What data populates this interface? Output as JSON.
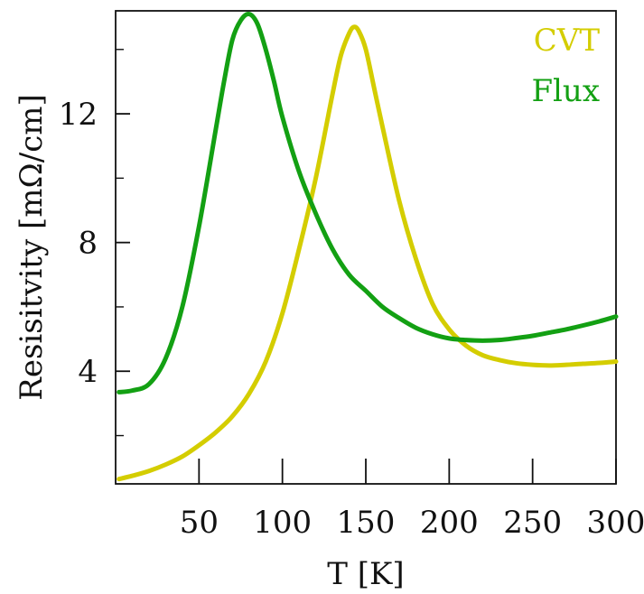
{
  "chart_data": {
    "type": "line",
    "title": "",
    "xlabel": "T [K]",
    "ylabel": "Resisitvity [mΩ/cm]",
    "xlim": [
      0,
      300
    ],
    "ylim": [
      0.5,
      15.2
    ],
    "xticks": [
      50,
      100,
      150,
      200,
      250,
      300
    ],
    "xtick_labels": [
      "50",
      "100",
      "150",
      "200",
      "250",
      "300"
    ],
    "xminor_ticks": [],
    "yticks": [
      4,
      8,
      12
    ],
    "ytick_labels": [
      "4",
      "8",
      "12"
    ],
    "yminor_ticks": [
      2,
      6,
      10,
      14
    ],
    "grid": false,
    "legend": {
      "position": "top-right"
    },
    "series": [
      {
        "name": "CVT",
        "color": "#d4cd00",
        "x": [
          2,
          10,
          20,
          30,
          40,
          50,
          60,
          70,
          80,
          90,
          100,
          110,
          120,
          130,
          135,
          140,
          143,
          146,
          150,
          155,
          160,
          170,
          180,
          190,
          200,
          210,
          220,
          230,
          240,
          250,
          260,
          270,
          280,
          290,
          300
        ],
        "y": [
          0.65,
          0.75,
          0.9,
          1.1,
          1.35,
          1.7,
          2.1,
          2.6,
          3.3,
          4.3,
          5.8,
          7.8,
          10.0,
          12.6,
          13.8,
          14.5,
          14.7,
          14.55,
          14.0,
          12.8,
          11.6,
          9.3,
          7.5,
          6.1,
          5.3,
          4.8,
          4.5,
          4.35,
          4.25,
          4.2,
          4.18,
          4.2,
          4.23,
          4.26,
          4.3
        ]
      },
      {
        "name": "Flux",
        "color": "#13a013",
        "x": [
          2,
          10,
          20,
          30,
          40,
          50,
          60,
          65,
          70,
          75,
          80,
          85,
          90,
          95,
          100,
          110,
          120,
          130,
          140,
          150,
          160,
          170,
          180,
          190,
          200,
          210,
          220,
          230,
          240,
          250,
          260,
          270,
          280,
          290,
          300
        ],
        "y": [
          3.35,
          3.4,
          3.6,
          4.4,
          6.0,
          8.5,
          11.5,
          13.0,
          14.3,
          14.9,
          15.1,
          14.8,
          14.0,
          13.0,
          11.9,
          10.2,
          8.9,
          7.8,
          7.0,
          6.5,
          6.0,
          5.65,
          5.35,
          5.15,
          5.02,
          4.97,
          4.95,
          4.97,
          5.03,
          5.1,
          5.2,
          5.3,
          5.42,
          5.55,
          5.7
        ]
      }
    ]
  }
}
